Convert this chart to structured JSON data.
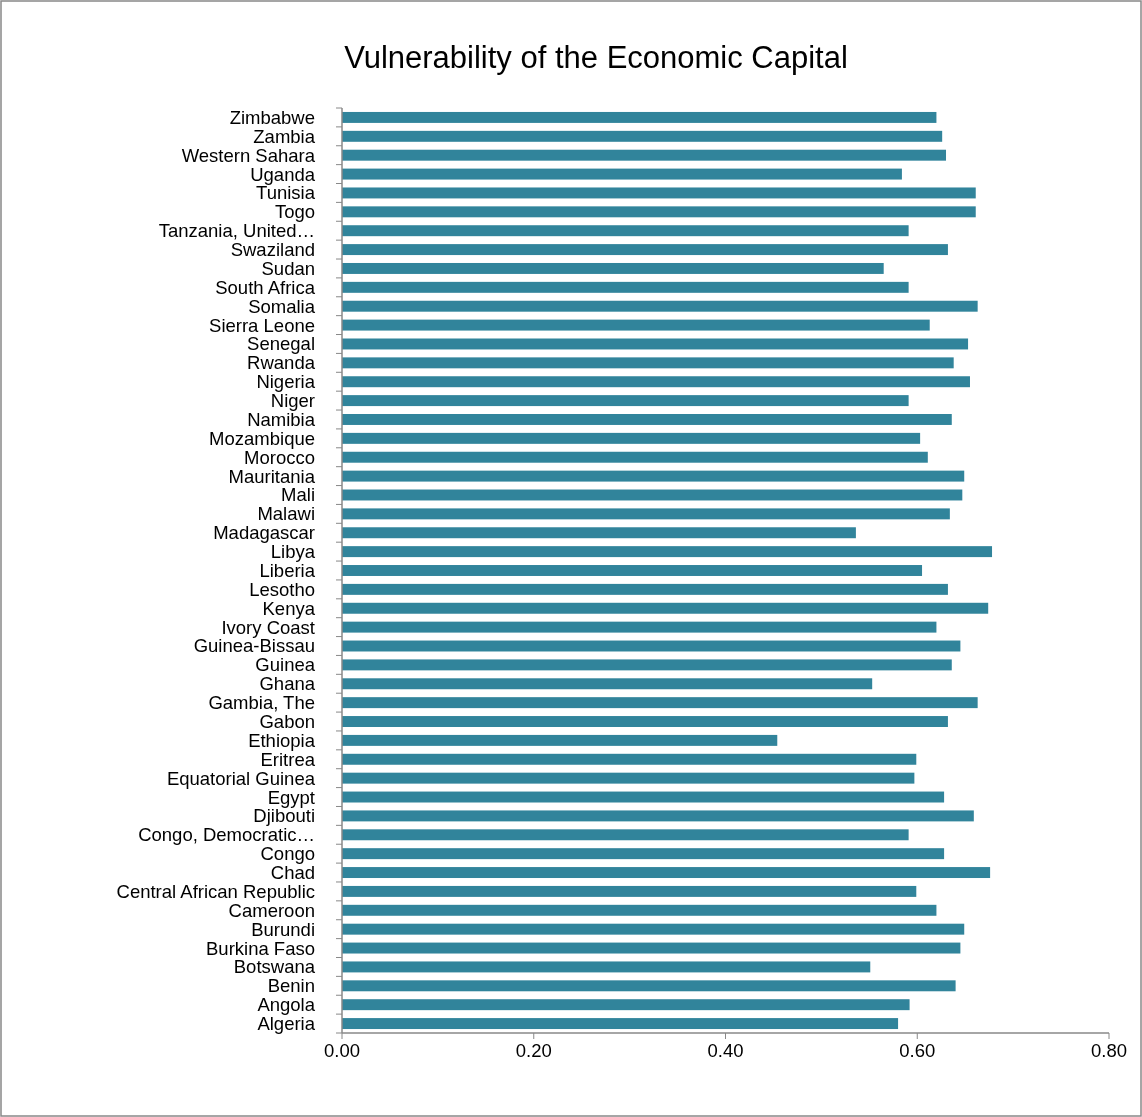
{
  "chart_data": {
    "type": "bar",
    "orientation": "horizontal",
    "title": "Vulnerability of the Economic Capital",
    "categories": [
      "Zimbabwe",
      "Zambia",
      "Western Sahara",
      "Uganda",
      "Tunisia",
      "Togo",
      "Tanzania, United…",
      "Swaziland",
      "Sudan",
      "South Africa",
      "Somalia",
      "Sierra Leone",
      "Senegal",
      "Rwanda",
      "Nigeria",
      "Niger",
      "Namibia",
      "Mozambique",
      "Morocco",
      "Mauritania",
      "Mali",
      "Malawi",
      "Madagascar",
      "Libya",
      "Liberia",
      "Lesotho",
      "Kenya",
      "Ivory Coast",
      "Guinea-Bissau",
      "Guinea",
      "Ghana",
      "Gambia, The",
      "Gabon",
      "Ethiopia",
      "Eritrea",
      "Equatorial Guinea",
      "Egypt",
      "Djibouti",
      "Congo, Democratic…",
      "Congo",
      "Chad",
      "Central African Republic",
      "Cameroon",
      "Burundi",
      "Burkina Faso",
      "Botswana",
      "Benin",
      "Angola",
      "Algeria"
    ],
    "values": [
      0.62,
      0.626,
      0.63,
      0.584,
      0.661,
      0.661,
      0.591,
      0.632,
      0.565,
      0.591,
      0.663,
      0.613,
      0.653,
      0.638,
      0.655,
      0.591,
      0.636,
      0.603,
      0.611,
      0.649,
      0.647,
      0.634,
      0.536,
      0.678,
      0.605,
      0.632,
      0.674,
      0.62,
      0.645,
      0.636,
      0.553,
      0.663,
      0.632,
      0.454,
      0.599,
      0.597,
      0.628,
      0.659,
      0.591,
      0.628,
      0.676,
      0.599,
      0.62,
      0.649,
      0.645,
      0.551,
      0.64,
      0.592,
      0.58
    ],
    "color": "#31849b",
    "xlim": [
      0,
      0.8
    ],
    "xticks": [
      {
        "value": 0,
        "label": "0.00"
      },
      {
        "value": 0.2,
        "label": "0.20"
      },
      {
        "value": 0.4,
        "label": "0.40"
      },
      {
        "value": 0.6,
        "label": "0.60"
      },
      {
        "value": 0.8,
        "label": "0.80"
      }
    ],
    "grid": false
  }
}
